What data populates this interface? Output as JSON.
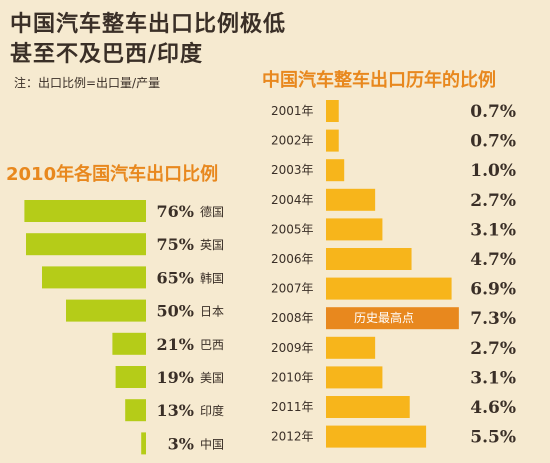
{
  "header": {
    "title_line1": "中国汽车整车出口比例极低",
    "title_line2": "甚至不及巴西/印度",
    "note": "注：出口比例=出口量/产量"
  },
  "colors": {
    "background": "#f6ead0",
    "left_bar": "#b5cc18",
    "right_bar": "#f7b51b",
    "highlight_bar": "#e8881e",
    "title_orange": "#e8881e",
    "text": "#3a2f27"
  },
  "chart_data": [
    {
      "type": "bar",
      "orientation": "horizontal",
      "title": "2010年各国汽车出口比例",
      "categories": [
        "德国",
        "英国",
        "韩国",
        "日本",
        "巴西",
        "美国",
        "印度",
        "中国"
      ],
      "values": [
        76,
        75,
        65,
        50,
        21,
        19,
        13,
        3
      ],
      "labels": [
        "76%",
        "75%",
        "65%",
        "50%",
        "21%",
        "19%",
        "13%",
        "3%"
      ],
      "unit": "%"
    },
    {
      "type": "bar",
      "orientation": "horizontal",
      "title": "中国汽车整车出口历年的比例",
      "categories": [
        "2001年",
        "2002年",
        "2003年",
        "2004年",
        "2005年",
        "2006年",
        "2007年",
        "2008年",
        "2009年",
        "2010年",
        "2011年",
        "2012年"
      ],
      "values": [
        0.7,
        0.7,
        1.0,
        2.7,
        3.1,
        4.7,
        6.9,
        7.3,
        2.7,
        3.1,
        4.6,
        5.5
      ],
      "labels": [
        "0.7%",
        "0.7%",
        "1.0%",
        "2.7%",
        "3.1%",
        "4.7%",
        "6.9%",
        "7.3%",
        "2.7%",
        "3.1%",
        "4.6%",
        "5.5%"
      ],
      "unit": "%",
      "highlight": {
        "category": "2008年",
        "annotation": "历史最高点"
      }
    }
  ]
}
